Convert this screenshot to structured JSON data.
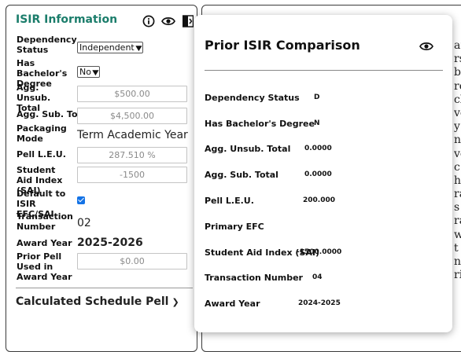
{
  "isir": {
    "title": "ISIR Information",
    "dependency_status": {
      "label": "Dependency Status",
      "value": "Independent"
    },
    "has_bachelors": {
      "label": "Has Bachelor's Degree",
      "value": "No"
    },
    "agg_unsub_total": {
      "label": "Agg. Unsub. Total",
      "value": "$500.00"
    },
    "agg_sub_total": {
      "label": "Agg. Sub. Total",
      "value": "$4,500.00"
    },
    "packaging_mode": {
      "label": "Packaging Mode",
      "value": "Term Academic Year"
    },
    "pell_leu": {
      "label": "Pell L.E.U.",
      "value": "287.510 %"
    },
    "sai": {
      "label": "Student Aid Index (SAI)",
      "value": "-1500"
    },
    "default_isir": {
      "label": "Default to ISIR EFC/SAI",
      "checked": true
    },
    "transaction_number": {
      "label": "Transaction Number",
      "value": "02"
    },
    "award_year": {
      "label": "Award Year",
      "value": "2025-2026"
    },
    "prior_pell_used": {
      "label": "Prior Pell Used in Award Year",
      "value": "$0.00"
    },
    "calculated_schedule_pell": "Calculated Schedule Pell"
  },
  "prior_isir": {
    "title": "Prior ISIR Comparison",
    "rows": [
      {
        "label": "Dependency Status",
        "value": "D"
      },
      {
        "label": "Has Bachelor's Degree",
        "value": "N"
      },
      {
        "label": "Agg. Unsub. Total",
        "value": "0.0000"
      },
      {
        "label": "Agg. Sub. Total",
        "value": "0.0000"
      },
      {
        "label": "Pell L.E.U.",
        "value": "200.000"
      },
      {
        "label": "Primary EFC",
        "value": ""
      },
      {
        "label": "Student Aid Index (SAI)",
        "value": "-1500.0000"
      },
      {
        "label": "Transaction Number",
        "value": "04"
      },
      {
        "label": "Award Year",
        "value": "2024-2025"
      }
    ]
  },
  "background_text": [
    "ar",
    "rs",
    "ba",
    "re",
    "cl",
    "ve",
    "y",
    "n",
    "ve",
    "c",
    "hi",
    "ra",
    "s",
    "ra",
    "w",
    "t",
    "nt",
    "ri"
  ],
  "icons": {
    "info": "info-circle-icon",
    "view": "eye-icon",
    "compare": "compare-sidebar-icon",
    "popup_view": "eye-icon"
  }
}
